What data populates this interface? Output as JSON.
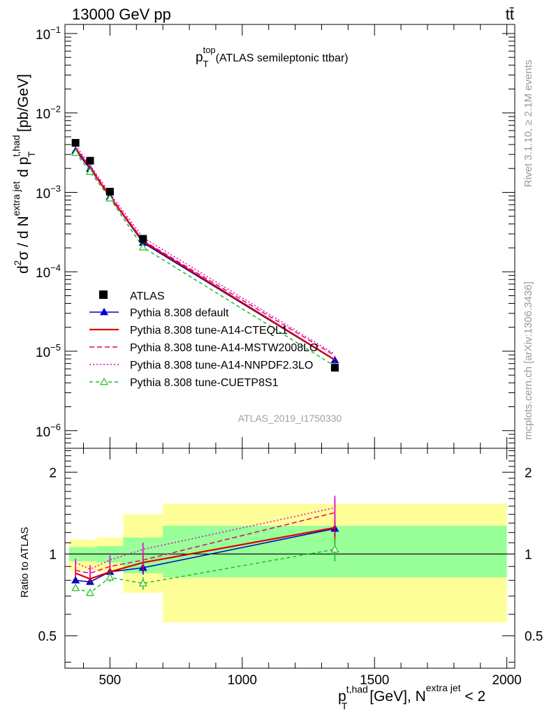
{
  "header": {
    "energy_label": "13000 GeV pp",
    "process_label": "tt̄"
  },
  "side_labels": {
    "rivet": "Rivet 3.1.10, ≥ 2.1M events",
    "mcplots": "mcplots.cern.ch [arXiv:1306.3436]"
  },
  "chart_data": [
    {
      "type": "line",
      "title_main": "p",
      "title_sup": "top",
      "title_sub": "T",
      "title_rest": "(ATLAS semileptonic ttbar)",
      "analysis_id": "ATLAS_2019_I1750330",
      "ylabel_parts": {
        "a": "d",
        "a_sup": "2",
        "b": "σ / d N",
        "b_sup": "extra jet",
        "c": " d p",
        "c_sup": "t,had",
        "c_sub": "T",
        "d": " [pb/GeV]"
      },
      "yscale": "log",
      "ylim": [
        6e-07,
        0.13
      ],
      "xlim": [
        330,
        2030
      ],
      "ytick_labels": [
        {
          "value": 1e-06,
          "base": "10",
          "exp": "−6"
        },
        {
          "value": 1e-05,
          "base": "10",
          "exp": "−5"
        },
        {
          "value": 0.0001,
          "base": "10",
          "exp": "−4"
        },
        {
          "value": 0.001,
          "base": "10",
          "exp": "−3"
        },
        {
          "value": 0.01,
          "base": "10",
          "exp": "−2"
        },
        {
          "value": 0.1,
          "base": "10",
          "exp": "−1"
        }
      ],
      "legend_position": "center-left",
      "data": {
        "name": "ATLAS",
        "x": [
          370,
          425,
          500,
          625,
          1350
        ],
        "y": [
          0.0042,
          0.0025,
          0.00102,
          0.00026,
          6.2e-06
        ]
      },
      "series": [
        {
          "name": "Pythia 8.308 default",
          "color": "#0000cc",
          "dash": "",
          "marker": "triangle-filled",
          "x": [
            370,
            425,
            500,
            625,
            1350
          ],
          "y": [
            0.00335,
            0.00198,
            0.00088,
            0.000232,
            7.7e-06
          ]
        },
        {
          "name": "Pythia 8.308 tune-A14-CTEQL1",
          "color": "#dd0000",
          "dash": "",
          "marker": "none",
          "x": [
            370,
            425,
            500,
            625,
            1350
          ],
          "y": [
            0.00358,
            0.00203,
            0.00088,
            0.000242,
            7.8e-06
          ]
        },
        {
          "name": "Pythia 8.308 tune-A14-MSTW2008LO",
          "color": "#e6006e",
          "dash": "7,4",
          "marker": "none",
          "x": [
            370,
            425,
            500,
            625,
            1350
          ],
          "y": [
            0.00365,
            0.00212,
            0.00092,
            0.000248,
            8.8e-06
          ]
        },
        {
          "name": "Pythia 8.308 tune-A14-NNPDF2.3LO",
          "color": "#e000e0",
          "dash": "2,3",
          "marker": "none",
          "x": [
            370,
            425,
            500,
            625,
            1350
          ],
          "y": [
            0.0039,
            0.0022,
            0.00097,
            0.00027,
            9.2e-06
          ]
        },
        {
          "name": "Pythia 8.308 tune-CUETP8S1",
          "color": "#22bb22",
          "dash": "5,4",
          "marker": "triangle-open",
          "x": [
            370,
            425,
            500,
            625,
            1350
          ],
          "y": [
            0.00315,
            0.00182,
            0.00084,
            0.000203,
            6.5e-06
          ]
        }
      ]
    },
    {
      "type": "line",
      "ylabel": "Ratio to ATLAS",
      "xlabel_parts": {
        "a": "p",
        "a_sup": "t,had",
        "a_sub": "T",
        "b": " [GeV], N",
        "b_sup": "extra jet",
        "c": " < 2"
      },
      "yscale": "log",
      "ylim": [
        0.38,
        2.45
      ],
      "xlim": [
        330,
        2030
      ],
      "xtick_labels": [
        500,
        1000,
        1500,
        2000
      ],
      "ytick_labels": [
        "0.5",
        "1",
        "2"
      ],
      "ytick_values": [
        0.5,
        1,
        2
      ],
      "bands": [
        {
          "xlo": 345,
          "xhi": 395,
          "inner": [
            0.94,
            1.06
          ],
          "outer": [
            0.87,
            1.13
          ]
        },
        {
          "xlo": 395,
          "xhi": 450,
          "inner": [
            0.94,
            1.06
          ],
          "outer": [
            0.87,
            1.13
          ]
        },
        {
          "xlo": 450,
          "xhi": 550,
          "inner": [
            0.93,
            1.07
          ],
          "outer": [
            0.86,
            1.15
          ]
        },
        {
          "xlo": 550,
          "xhi": 700,
          "inner": [
            0.85,
            1.15
          ],
          "outer": [
            0.72,
            1.4
          ]
        },
        {
          "xlo": 700,
          "xhi": 2000,
          "inner": [
            0.82,
            1.27
          ],
          "outer": [
            0.56,
            1.53
          ]
        }
      ],
      "series": [
        {
          "name": "Pythia 8.308 default",
          "color": "#0000cc",
          "dash": "",
          "marker": "triangle-filled",
          "x": [
            370,
            425,
            500,
            625,
            1350
          ],
          "y": [
            0.8,
            0.79,
            0.86,
            0.89,
            1.24
          ],
          "err": [
            0.02,
            0.02,
            0.03,
            0.05,
            0.08
          ]
        },
        {
          "name": "Pythia 8.308 tune-A14-CTEQL1",
          "color": "#dd0000",
          "dash": "",
          "marker": "none",
          "x": [
            370,
            425,
            500,
            625,
            1350
          ],
          "y": [
            0.85,
            0.81,
            0.86,
            0.93,
            1.25
          ],
          "err": [
            0.03,
            0.03,
            0.04,
            0.06,
            0.15
          ]
        },
        {
          "name": "Pythia 8.308 tune-A14-MSTW2008LO",
          "color": "#e6006e",
          "dash": "7,4",
          "marker": "none",
          "x": [
            370,
            425,
            500,
            625,
            1350
          ],
          "y": [
            0.87,
            0.85,
            0.9,
            0.95,
            1.42
          ],
          "err": [
            0.03,
            0.03,
            0.04,
            0.06,
            0.18
          ]
        },
        {
          "name": "Pythia 8.308 tune-A14-NNPDF2.3LO",
          "color": "#e000e0",
          "dash": "2,3",
          "marker": "none",
          "x": [
            370,
            425,
            500,
            625,
            1350
          ],
          "y": [
            0.93,
            0.88,
            0.95,
            1.04,
            1.48
          ],
          "err": [
            0.03,
            0.03,
            0.04,
            0.06,
            0.16
          ]
        },
        {
          "name": "Pythia 8.308 tune-CUETP8S1",
          "color": "#22bb22",
          "dash": "5,4",
          "marker": "triangle-open",
          "x": [
            370,
            425,
            500,
            625,
            1350
          ],
          "y": [
            0.75,
            0.72,
            0.82,
            0.78,
            1.04
          ],
          "err": [
            0.02,
            0.02,
            0.03,
            0.04,
            0.1
          ]
        }
      ]
    }
  ]
}
